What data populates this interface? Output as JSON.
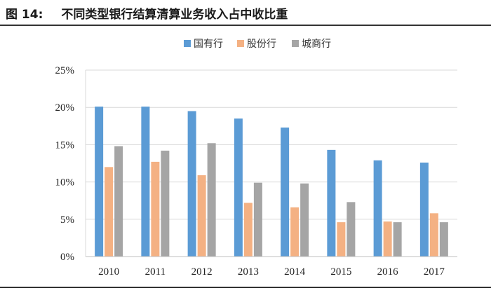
{
  "figure": {
    "number": "图 14:",
    "title": "不同类型银行结算清算业务收入占中收比重"
  },
  "chart_data": {
    "type": "bar",
    "categories": [
      "2010",
      "2011",
      "2012",
      "2013",
      "2014",
      "2015",
      "2016",
      "2017"
    ],
    "series": [
      {
        "name": "国有行",
        "color": "#5b9bd5",
        "values": [
          20.1,
          20.1,
          19.5,
          18.5,
          17.3,
          14.3,
          12.9,
          12.6
        ]
      },
      {
        "name": "股份行",
        "color": "#f4b183",
        "values": [
          12.0,
          12.7,
          10.9,
          7.2,
          6.6,
          4.6,
          4.7,
          5.8
        ]
      },
      {
        "name": "城商行",
        "color": "#a5a5a5",
        "values": [
          14.8,
          14.2,
          15.2,
          9.9,
          9.8,
          7.3,
          4.6,
          4.6
        ]
      }
    ],
    "yticks": [
      "0%",
      "5%",
      "10%",
      "15%",
      "20%",
      "25%"
    ],
    "ylim": [
      0,
      25
    ],
    "grid": true,
    "legend_position": "top-center"
  }
}
